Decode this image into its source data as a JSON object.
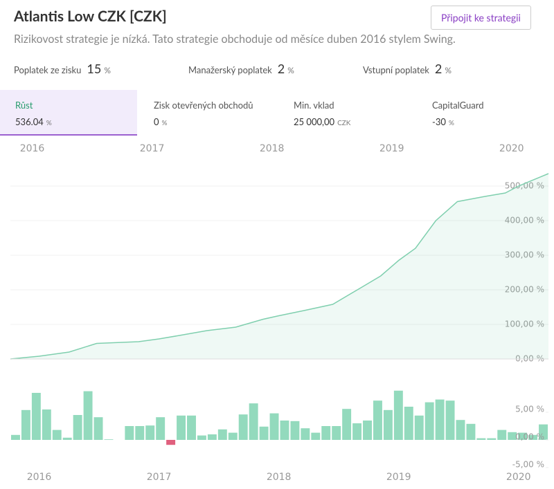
{
  "header": {
    "title": "Atlantis Low CZK [CZK]",
    "button": "Připojit ke strategii",
    "subtitle": "Rizikovost strategie je nízká. Tato strategie obchoduje od měsíce duben 2016 stylem Swing."
  },
  "fees": [
    {
      "label": "Poplatek ze zisku",
      "value": 15,
      "unit": "%"
    },
    {
      "label": "Manažerský poplatek",
      "value": 2,
      "unit": "%"
    },
    {
      "label": "Vstupní poplatek",
      "value": 2,
      "unit": "%"
    }
  ],
  "stats": [
    {
      "label": "Růst",
      "value": 536.04,
      "unit": "%"
    },
    {
      "label": "Zisk otevřených obchodů",
      "value": 0,
      "unit": "%"
    },
    {
      "label": "Min. vklad",
      "value": "25 000,00",
      "unit": "CZK"
    },
    {
      "label": "CapitalGuard",
      "value": -30,
      "unit": "%"
    }
  ],
  "chart_data": [
    {
      "type": "line",
      "color": "#7fcfae",
      "area": true,
      "grid": true,
      "x": [
        2015.76,
        2016.0,
        2016.25,
        2016.48,
        2016.83,
        2017.0,
        2017.17,
        2017.4,
        2017.64,
        2017.87,
        2018.0,
        2018.21,
        2018.45,
        2018.68,
        2018.85,
        2019.0,
        2019.14,
        2019.31,
        2019.49,
        2019.72,
        2019.89,
        2020.0,
        2020.25
      ],
      "values": [
        0,
        8,
        20,
        45,
        50,
        58,
        68,
        82,
        92,
        115,
        125,
        140,
        158,
        205,
        240,
        285,
        320,
        400,
        455,
        470,
        480,
        500,
        536
      ],
      "xlim": [
        2015.76,
        2020.25
      ],
      "xticks": [
        2016,
        2017,
        2018,
        2019,
        2020
      ],
      "ylim": [
        0,
        538
      ],
      "yticks": [
        {
          "value": 0,
          "label": "0,00 %"
        },
        {
          "value": 100,
          "label": "100,00 %"
        },
        {
          "value": 200,
          "label": "200,00 %"
        },
        {
          "value": 300,
          "label": "300,00 %"
        },
        {
          "value": 400,
          "label": "400,00 %"
        },
        {
          "value": 500,
          "label": "500,00 %"
        }
      ]
    },
    {
      "type": "bar",
      "color": "#93dabd",
      "negative_color": "#e0607e",
      "categories": [
        null,
        null,
        null,
        null,
        null,
        null,
        null,
        null,
        null,
        null,
        null,
        null,
        null,
        null,
        null,
        null,
        null,
        null,
        null,
        null,
        null,
        null,
        null,
        null,
        null,
        null,
        null,
        null,
        null,
        null,
        null,
        null,
        null,
        null,
        null,
        null,
        null,
        null,
        null,
        null,
        null,
        null,
        null,
        null,
        null,
        null,
        null,
        null,
        null,
        null,
        null,
        null
      ],
      "values": [
        0.9,
        5.4,
        8.5,
        5.5,
        1.8,
        0.4,
        4.5,
        8.8,
        4.1,
        0.1,
        0,
        2.5,
        2.5,
        2.6,
        4.1,
        -0.9,
        4.4,
        4.4,
        0.8,
        1.0,
        1.9,
        1.3,
        4.6,
        6.6,
        2.4,
        4.8,
        3.5,
        3.4,
        2.1,
        1.3,
        2.5,
        2.5,
        5.6,
        3.0,
        3.5,
        7.1,
        5.4,
        8.9,
        6.0,
        4.4,
        6.8,
        7.3,
        7.1,
        3.6,
        2.9,
        0.3,
        0.3,
        1.8,
        1.4,
        1.3,
        0.9,
        2.8
      ],
      "xlim": [
        2015.76,
        2020.25
      ],
      "xticks": [
        2016,
        2017,
        2018,
        2019,
        2020
      ],
      "ylim": [
        -6.75,
        9.5
      ],
      "yticks": [
        {
          "value": -5,
          "label": "-5,00 %"
        },
        {
          "value": 0,
          "label": "0,00 %"
        },
        {
          "value": 5,
          "label": "5,00 %"
        }
      ]
    }
  ]
}
